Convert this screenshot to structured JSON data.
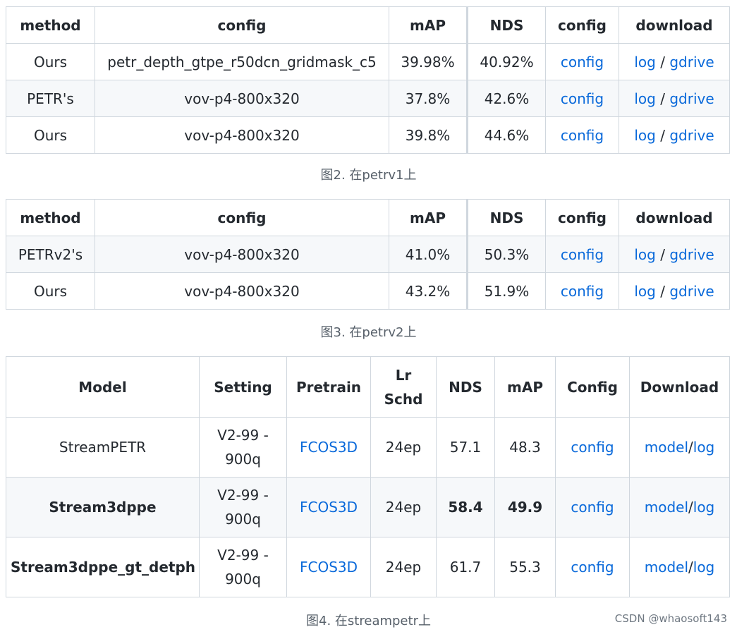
{
  "table1": {
    "headers": [
      "method",
      "config",
      "mAP",
      "NDS",
      "config",
      "download"
    ],
    "rows": [
      {
        "method": "Ours",
        "config": "petr_depth_gtpe_r50dcn_gridmask_c5",
        "map": "39.98%",
        "nds": "40.92%",
        "config_link": "config",
        "log": "log",
        "sep": "/",
        "gdrive": "gdrive"
      },
      {
        "method": "PETR's",
        "config": "vov-p4-800x320",
        "map": "37.8%",
        "nds": "42.6%",
        "config_link": "config",
        "log": "log",
        "sep": "/",
        "gdrive": "gdrive"
      },
      {
        "method": "Ours",
        "config": "vov-p4-800x320",
        "map": "39.8%",
        "nds": "44.6%",
        "config_link": "config",
        "log": "log",
        "sep": "/",
        "gdrive": "gdrive"
      }
    ],
    "caption": "图2. 在petrv1上"
  },
  "table2": {
    "headers": [
      "method",
      "config",
      "mAP",
      "NDS",
      "config",
      "download"
    ],
    "rows": [
      {
        "method": "PETRv2's",
        "config": "vov-p4-800x320",
        "map": "41.0%",
        "nds": "50.3%",
        "config_link": "config",
        "log": "log",
        "sep": "/",
        "gdrive": "gdrive"
      },
      {
        "method": "Ours",
        "config": "vov-p4-800x320",
        "map": "43.2%",
        "nds": "51.9%",
        "config_link": "config",
        "log": "log",
        "sep": "/",
        "gdrive": "gdrive"
      }
    ],
    "caption": "图3. 在petrv2上"
  },
  "table3": {
    "headers": [
      "Model",
      "Setting",
      "Pretrain",
      "Lr Schd",
      "NDS",
      "mAP",
      "Config",
      "Download"
    ],
    "rows": [
      {
        "model": "StreamPETR",
        "setting": "V2-99 - 900q",
        "pretrain": "FCOS3D",
        "lr_schd": "24ep",
        "nds": "57.1",
        "map": "48.3",
        "config": "config",
        "model_link": "model",
        "sep": "/",
        "log": "log"
      },
      {
        "model": "Stream3dppe",
        "setting": "V2-99 - 900q",
        "pretrain": "FCOS3D",
        "lr_schd": "24ep",
        "nds": "58.4",
        "map": "49.9",
        "config": "config",
        "model_link": "model",
        "sep": "/",
        "log": "log"
      },
      {
        "model": "Stream3dppe_gt_detph",
        "setting": "V2-99 - 900q",
        "pretrain": "FCOS3D",
        "lr_schd": "24ep",
        "nds": "61.7",
        "map": "55.3",
        "config": "config",
        "model_link": "model",
        "sep": "/",
        "log": "log"
      }
    ],
    "caption": "图4. 在streampetr上"
  },
  "watermark": "CSDN @whaosoft143",
  "colors": {
    "link": "#0969da",
    "border": "#d0d7de",
    "stripe": "#f6f8fa",
    "text": "#24292f"
  }
}
